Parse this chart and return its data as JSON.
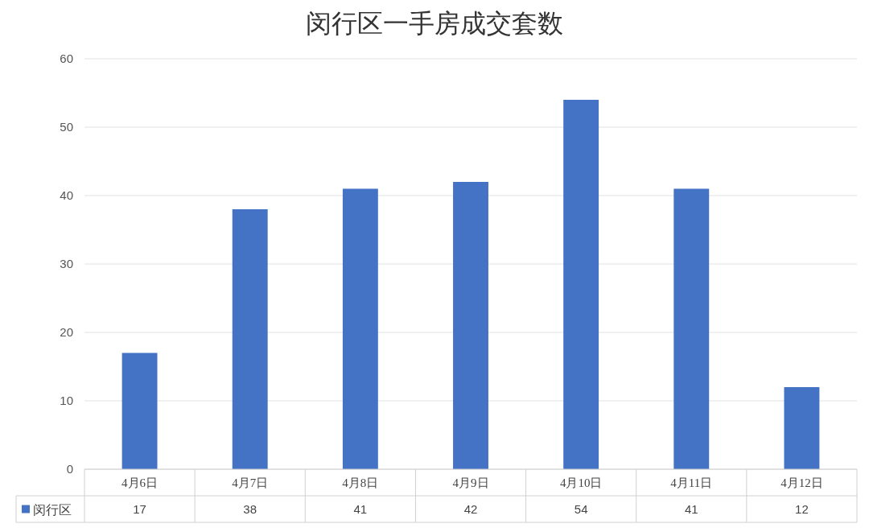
{
  "chart_data": {
    "type": "bar",
    "title": "闵行区一手房成交套数",
    "categories": [
      "4月6日",
      "4月7日",
      "4月8日",
      "4月9日",
      "4月10日",
      "4月11日",
      "4月12日"
    ],
    "series": [
      {
        "name": "闵行区",
        "color": "#4472c4",
        "values": [
          17,
          38,
          41,
          42,
          54,
          41,
          12
        ]
      }
    ],
    "ylim": [
      0,
      60
    ],
    "yticks": [
      0,
      10,
      20,
      30,
      40,
      50,
      60
    ],
    "grid": "y",
    "data_labels": true,
    "legend": "bottom left"
  }
}
